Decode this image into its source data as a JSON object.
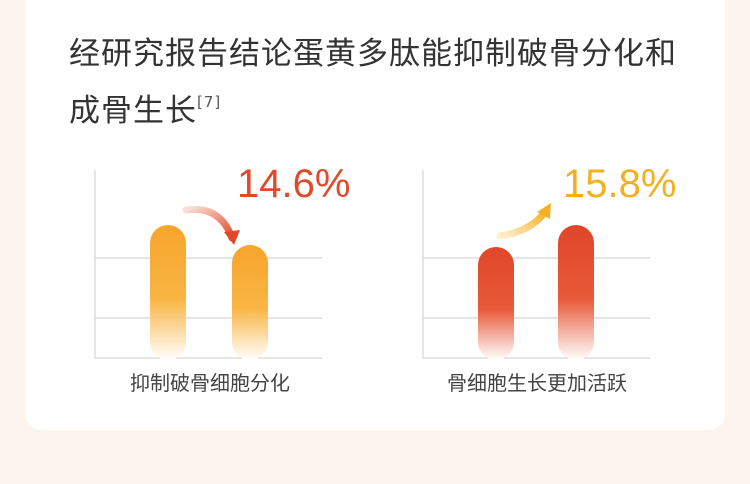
{
  "title": {
    "text": "经研究报告结论蛋黄多肽能抑制破骨分化和成骨生长",
    "ref": "[7]"
  },
  "panels": [
    {
      "change": "14.6%",
      "caption": "抑制破骨细胞分化"
    },
    {
      "change": "15.8%",
      "caption": "骨细胞生长更加活跃"
    }
  ]
}
